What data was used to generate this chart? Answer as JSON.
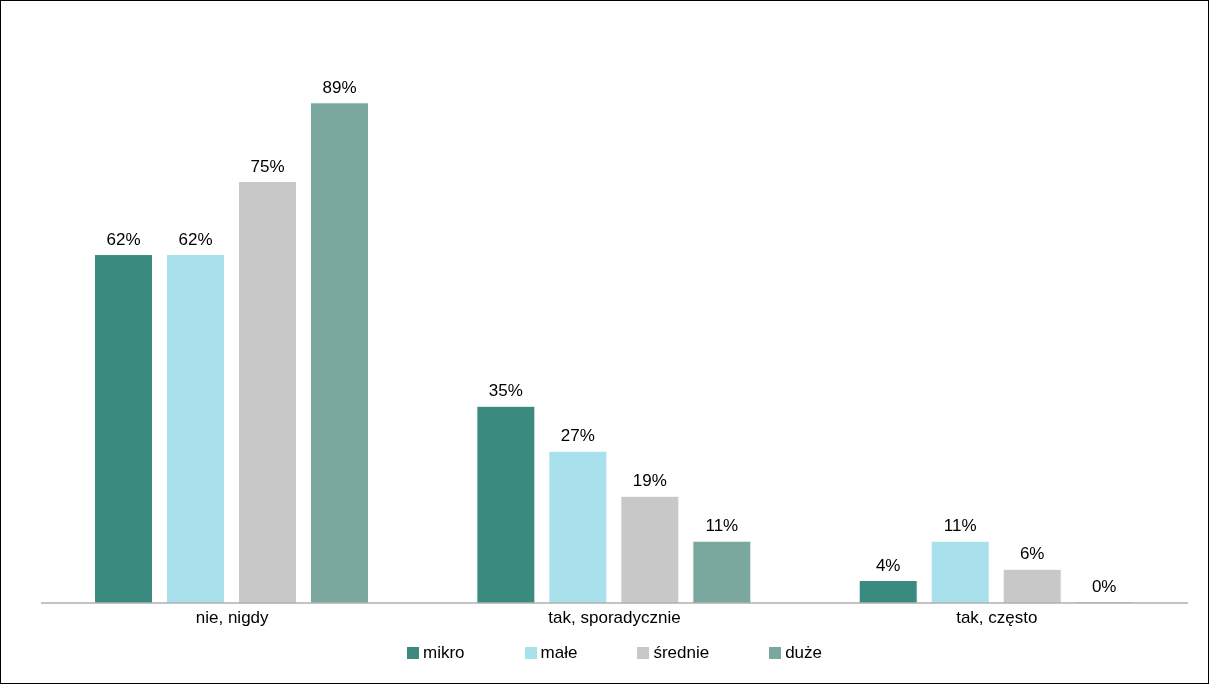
{
  "chart_data": {
    "type": "bar",
    "categories": [
      "nie, nigdy",
      "tak, sporadycznie",
      "tak, często"
    ],
    "series": [
      {
        "name": "mikro",
        "color": "#3a8a80",
        "values": [
          62,
          35,
          4
        ],
        "value_labels": [
          "62%",
          "35%",
          "4%"
        ]
      },
      {
        "name": "małe",
        "color": "#a8e0ec",
        "values": [
          62,
          27,
          11
        ],
        "value_labels": [
          "62%",
          "27%",
          "11%"
        ]
      },
      {
        "name": "średnie",
        "color": "#c8c8c8",
        "values": [
          75,
          19,
          6
        ],
        "value_labels": [
          "75%",
          "19%",
          "6%"
        ]
      },
      {
        "name": "duże",
        "color": "#7aa89f",
        "values": [
          89,
          11,
          0
        ],
        "value_labels": [
          "89%",
          "11%",
          "0%"
        ]
      }
    ],
    "tick_labels": "x",
    "grid": false,
    "legend": "bottom"
  }
}
